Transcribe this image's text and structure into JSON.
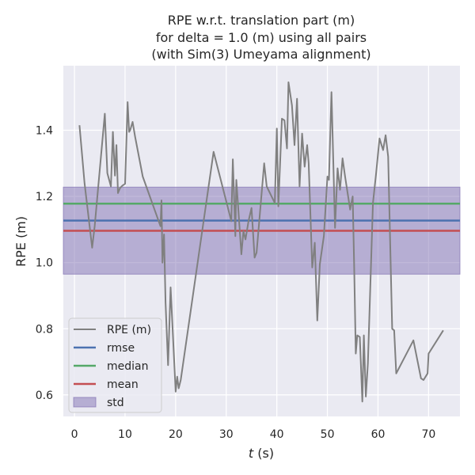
{
  "chart_data": {
    "type": "line",
    "title_lines": [
      "RPE w.r.t. translation part (m)",
      "for delta = 1.0 (m) using all pairs",
      "(with Sim(3) Umeyama alignment)"
    ],
    "xlabel": "t (s)",
    "xlabel_var": "t",
    "xlabel_unit": " (s)",
    "ylabel": "RPE (m)",
    "xlim": [
      -2.2,
      76.2
    ],
    "ylim": [
      0.535,
      1.595
    ],
    "xticks": [
      0,
      10,
      20,
      30,
      40,
      50,
      60,
      70
    ],
    "yticks": [
      0.6,
      0.8,
      1.0,
      1.2,
      1.4
    ],
    "ytick_labels": [
      "0.6",
      "0.8",
      "1.0",
      "1.2",
      "1.4"
    ],
    "grid": true,
    "legend_position": "lower-left",
    "series": [
      {
        "name": "RPE (m)",
        "color": "#808080",
        "x": [
          1.0,
          2.0,
          3.5,
          4.0,
          6.0,
          6.5,
          7.2,
          7.6,
          8.0,
          8.3,
          8.6,
          9.0,
          9.5,
          10.0,
          10.5,
          10.8,
          11.0,
          11.5,
          12.0,
          13.5,
          17.0,
          17.2,
          17.4,
          17.7,
          18.0,
          18.5,
          19.0,
          20.0,
          20.3,
          20.6,
          21.0,
          27.5,
          31.0,
          31.3,
          31.8,
          32.0,
          33.0,
          33.4,
          33.8,
          34.4,
          35.0,
          35.6,
          36.0,
          37.5,
          38.0,
          39.6,
          40.0,
          40.3,
          41.0,
          41.5,
          42.0,
          42.3,
          43.0,
          43.5,
          44.0,
          44.5,
          45.0,
          45.5,
          46.0,
          46.3,
          47.0,
          47.5,
          48.0,
          48.5,
          49.3,
          50.0,
          50.3,
          50.8,
          51.5,
          52.0,
          52.5,
          53.0,
          53.5,
          54.5,
          55.0,
          55.3,
          55.6,
          55.9,
          56.4,
          56.9,
          57.2,
          57.6,
          58.0,
          59.0,
          59.6,
          60.3,
          61.0,
          61.5,
          62.0,
          62.8,
          63.2,
          63.6,
          67.0,
          68.5,
          69.0,
          69.8,
          70.0,
          72.9
        ],
        "y": [
          1.415,
          1.24,
          1.045,
          1.11,
          1.45,
          1.27,
          1.23,
          1.395,
          1.263,
          1.355,
          1.21,
          1.225,
          1.233,
          1.238,
          1.485,
          1.395,
          1.4,
          1.425,
          1.38,
          1.26,
          1.11,
          1.188,
          1.0,
          1.085,
          0.88,
          0.69,
          0.925,
          0.61,
          0.655,
          0.62,
          0.645,
          1.335,
          1.125,
          1.312,
          1.08,
          1.25,
          1.025,
          1.095,
          1.07,
          1.125,
          1.165,
          1.015,
          1.03,
          1.3,
          1.23,
          1.18,
          1.405,
          1.17,
          1.435,
          1.43,
          1.345,
          1.545,
          1.475,
          1.355,
          1.495,
          1.23,
          1.39,
          1.29,
          1.355,
          1.3,
          0.985,
          1.06,
          0.825,
          0.995,
          1.08,
          1.26,
          1.25,
          1.515,
          1.105,
          1.285,
          1.22,
          1.315,
          1.26,
          1.16,
          1.2,
          0.985,
          0.725,
          0.78,
          0.775,
          0.58,
          0.78,
          0.595,
          0.695,
          1.18,
          1.265,
          1.375,
          1.34,
          1.385,
          1.32,
          0.8,
          0.795,
          0.665,
          0.765,
          0.65,
          0.645,
          0.665,
          0.725,
          0.795
        ]
      }
    ],
    "stats": [
      {
        "name": "rmse",
        "value": 1.127,
        "color": "#4c72b0"
      },
      {
        "name": "median",
        "value": 1.178,
        "color": "#55a868"
      },
      {
        "name": "mean",
        "value": 1.096,
        "color": "#c44e52"
      }
    ],
    "std_band": {
      "name": "std",
      "low": 0.965,
      "high": 1.228,
      "color": "#8172b3"
    },
    "colors": {
      "plot_background": "#eaeaf2",
      "grid": "#ffffff",
      "text": "#262626",
      "legend_background": "#eaeaf2",
      "legend_border": "#cccccc"
    }
  }
}
